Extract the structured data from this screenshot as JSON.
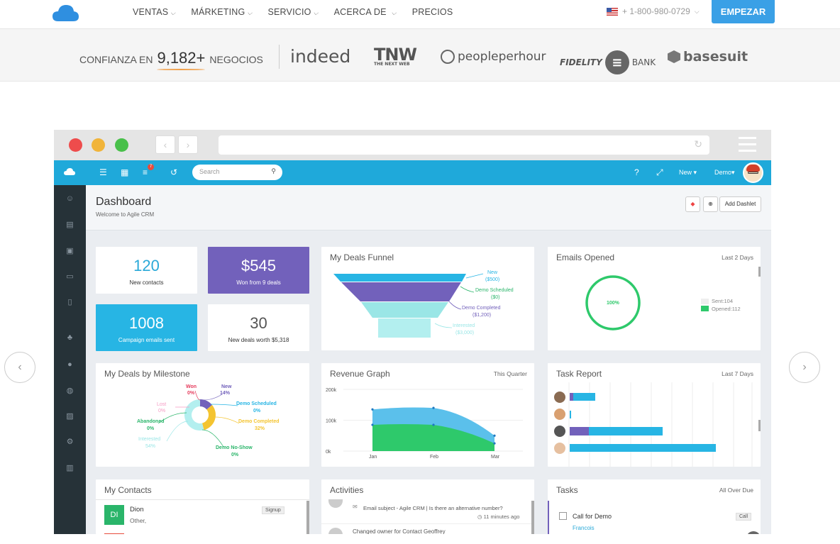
{
  "nav": {
    "items": [
      "VENTAS",
      "MÁRKETING",
      "SERVICIO",
      "ACERCA DE",
      "PRECIOS"
    ],
    "phone": "+ 1-800-980-0729",
    "cta": "EMPEZAR"
  },
  "trust": {
    "prefix": "CONFIANZA EN",
    "count": "9,182+",
    "suffix": "NEGOCIOS",
    "brands": [
      "indeed",
      "TNW",
      "THE NEXT WEB",
      "peopleperhour",
      "FIDELITY",
      "BANK",
      "basesuit"
    ]
  },
  "app": {
    "search_placeholder": "Search",
    "badge": "7",
    "new_label": "New",
    "demo_label": "Demo",
    "dashboard_title": "Dashboard",
    "dashboard_sub": "Welcome to Agile CRM",
    "add_dashlet": "Add Dashlet",
    "stats": [
      {
        "value": "120",
        "label": "New contacts"
      },
      {
        "value": "$545",
        "label": "Won from 9 deals"
      },
      {
        "value": "1008",
        "label": "Campaign emails sent"
      },
      {
        "value": "30",
        "label": "New deals worth $5,318"
      }
    ],
    "funnel": {
      "title": "My Deals Funnel",
      "labels": [
        "New",
        "($500)",
        "Demo Scheduled",
        "($0)",
        "Demo Completed",
        "($1,200)",
        "Interested",
        "($3,000)"
      ]
    },
    "emails": {
      "title": "Emails Opened",
      "range": "Last 2 Days",
      "percent": "100%",
      "sent": "Sent:104",
      "opened": "Opened:112"
    },
    "milestone": {
      "title": "My Deals by Milestone",
      "labels": [
        {
          "name": "Won",
          "pct": "0%"
        },
        {
          "name": "New",
          "pct": "14%"
        },
        {
          "name": "Lost",
          "pct": "0%"
        },
        {
          "name": "Demo Scheduled",
          "pct": "0%"
        },
        {
          "name": "Abandoned",
          "pct": "0%"
        },
        {
          "name": "Demo Completed",
          "pct": "32%"
        },
        {
          "name": "Interested",
          "pct": "54%"
        },
        {
          "name": "Demo No-Show",
          "pct": "0%"
        }
      ]
    },
    "revenue": {
      "title": "Revenue Graph",
      "range": "This Quarter",
      "y_ticks": [
        "200k",
        "100k",
        "0k"
      ],
      "x_ticks": [
        "Jan",
        "Feb",
        "Mar"
      ]
    },
    "tasks_report": {
      "title": "Task Report",
      "range": "Last 7 Days"
    },
    "contacts": {
      "title": "My Contacts",
      "name": "Dion",
      "sub": "Other,",
      "initials": "DI",
      "tag": "Signup"
    },
    "activities": {
      "title": "Activities",
      "line1": "Email subject - Agile CRM | Is there an alternative number?",
      "time1": "11 minutes ago",
      "line2": "Changed owner for Contact Geoffrey"
    },
    "tasks": {
      "title": "Tasks",
      "range": "All Over Due",
      "task": "Call for Demo",
      "who": "Francois",
      "tag": "Call"
    }
  },
  "chart_data": [
    {
      "type": "area",
      "title": "Revenue Graph",
      "categories": [
        "Jan",
        "Feb",
        "Mar"
      ],
      "series": [],
      "values_top": [
        135000,
        140000,
        50000
      ],
      "values_bottom": [
        85000,
        85000,
        25000
      ],
      "ylim": [
        0,
        200000
      ]
    },
    {
      "type": "pie",
      "title": "My Deals by Milestone",
      "categories": [
        "Won",
        "New",
        "Lost",
        "Demo Scheduled",
        "Abandoned",
        "Demo Completed",
        "Interested",
        "Demo No-Show"
      ],
      "values": [
        0,
        14,
        0,
        0,
        0,
        32,
        54,
        0
      ]
    }
  ]
}
